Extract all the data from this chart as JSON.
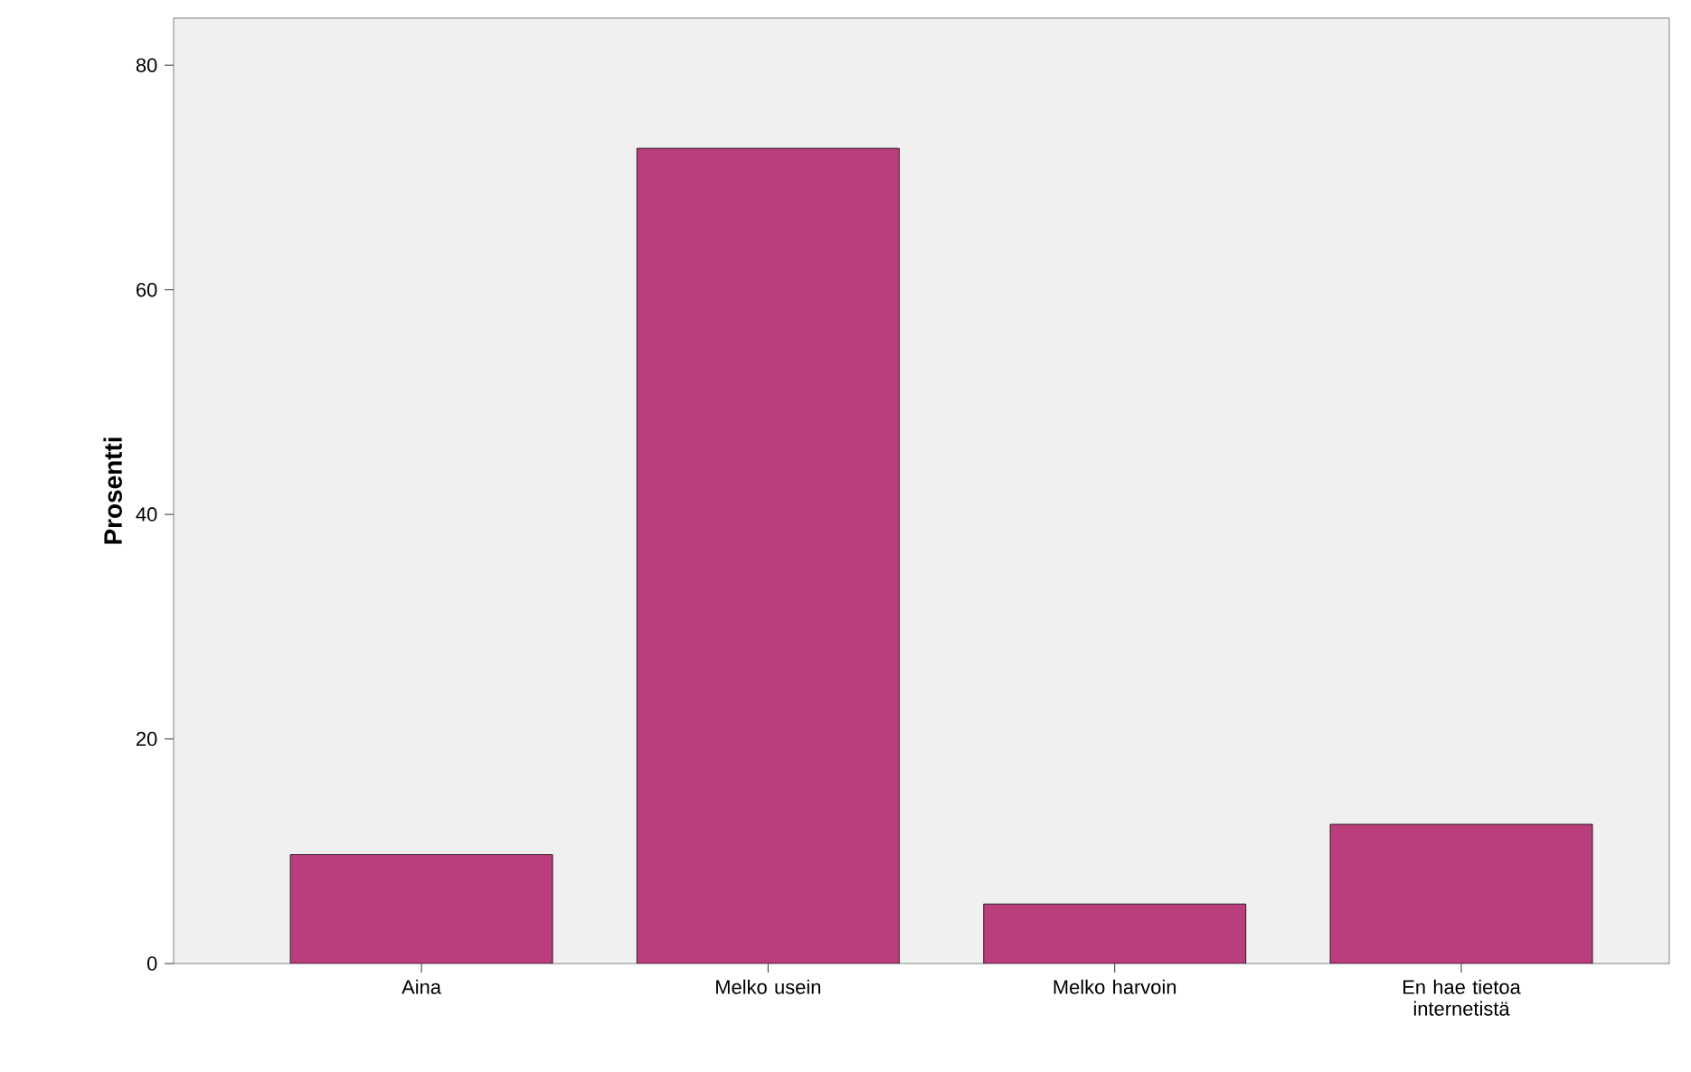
{
  "chart_data": {
    "type": "bar",
    "ylabel": "Prosentti",
    "categories": [
      "Aina",
      "Melko usein",
      "Melko harvoin",
      "En hae tietoa internetistä"
    ],
    "values": [
      9.7,
      72.6,
      5.3,
      12.4
    ],
    "color": "#bb3e7c",
    "ylim": [
      0,
      84.2
    ],
    "yticks": [
      0,
      20,
      40,
      60,
      80
    ],
    "grid": false
  }
}
